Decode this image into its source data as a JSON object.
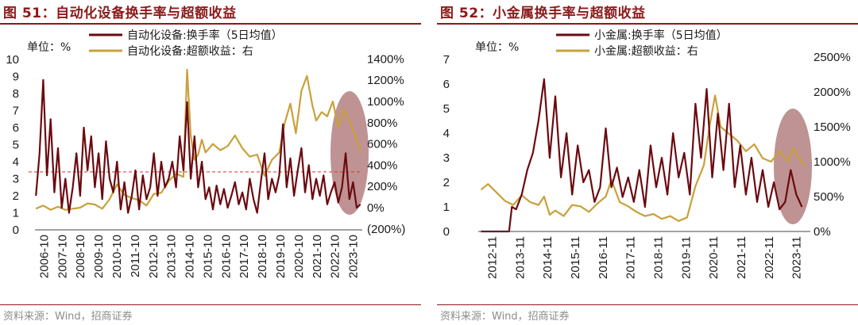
{
  "colors": {
    "turnover": "#6B0A10",
    "excess": "#C9A13B",
    "accent": "#8B1A1A",
    "negative": "#E03030",
    "ellipse": "#8B3A3A"
  },
  "panels": [
    {
      "title": "图 51：自动化设备换手率与超额收益",
      "source": "资料来源：Wind，招商证券",
      "unit_label": "单位：%",
      "chart_data": {
        "type": "line",
        "legend": [
          "自动化设备:换手率（5日均值）",
          "自动化设备:超额收益：右"
        ],
        "legend_position": "top",
        "y_left_ticks": [
          "10",
          "9",
          "8",
          "7",
          "6",
          "5",
          "4",
          "3",
          "2",
          "1",
          "0"
        ],
        "y_right_ticks": [
          "1400%",
          "1200%",
          "1000%",
          "800%",
          "600%",
          "400%",
          "200%",
          "0%",
          "(200%)"
        ],
        "ylim_left": [
          0,
          10
        ],
        "ylim_right": [
          -200,
          1400
        ],
        "x_ticks": [
          "2006-10",
          "2007-10",
          "2008-10",
          "2009-10",
          "2010-10",
          "2011-10",
          "2012-10",
          "2013-10",
          "2014-10",
          "2015-10",
          "2016-10",
          "2017-10",
          "2018-10",
          "2019-10",
          "2020-10",
          "2021-10",
          "2022-10",
          "2023-10"
        ],
        "x_start": 2006.75,
        "x_end": 2024.5,
        "reference_line": 3.4,
        "series": [
          {
            "name": "自动化设备:换手率（5日均值）",
            "axis": "left",
            "x": [
              2006.8,
              2007.0,
              2007.2,
              2007.4,
              2007.6,
              2007.8,
              2008.0,
              2008.2,
              2008.4,
              2008.6,
              2008.8,
              2009.0,
              2009.2,
              2009.4,
              2009.6,
              2009.8,
              2010.0,
              2010.2,
              2010.4,
              2010.6,
              2010.8,
              2011.0,
              2011.2,
              2011.4,
              2011.6,
              2011.8,
              2012.0,
              2012.2,
              2012.4,
              2012.6,
              2012.8,
              2013.0,
              2013.2,
              2013.4,
              2013.6,
              2013.8,
              2014.0,
              2014.2,
              2014.4,
              2014.6,
              2014.8,
              2015.0,
              2015.2,
              2015.4,
              2015.6,
              2015.8,
              2016.0,
              2016.2,
              2016.4,
              2016.6,
              2016.8,
              2017.0,
              2017.2,
              2017.4,
              2017.6,
              2017.8,
              2018.0,
              2018.2,
              2018.4,
              2018.6,
              2018.8,
              2019.0,
              2019.2,
              2019.4,
              2019.6,
              2019.8,
              2020.0,
              2020.2,
              2020.4,
              2020.6,
              2020.8,
              2021.0,
              2021.2,
              2021.4,
              2021.6,
              2021.8,
              2022.0,
              2022.2,
              2022.4,
              2022.6,
              2022.8,
              2023.0,
              2023.2,
              2023.4,
              2023.6,
              2023.8,
              2024.0,
              2024.2,
              2024.4
            ],
            "values": [
              2.0,
              4.5,
              8.8,
              3.2,
              6.5,
              2.2,
              4.8,
              1.3,
              3.0,
              1.0,
              2.5,
              4.5,
              2.0,
              6.0,
              3.5,
              5.5,
              2.5,
              4.5,
              1.8,
              5.2,
              3.0,
              2.2,
              4.0,
              1.2,
              2.8,
              1.0,
              2.0,
              3.5,
              1.2,
              3.2,
              1.8,
              2.5,
              4.5,
              2.0,
              4.0,
              2.5,
              3.0,
              4.0,
              2.5,
              5.5,
              3.5,
              7.5,
              3.0,
              5.5,
              2.5,
              4.0,
              1.8,
              2.5,
              1.2,
              2.6,
              1.5,
              2.4,
              1.3,
              2.0,
              2.8,
              1.5,
              2.2,
              1.2,
              3.0,
              1.8,
              1.0,
              2.8,
              4.5,
              1.8,
              3.0,
              2.2,
              3.2,
              6.2,
              2.5,
              4.2,
              2.0,
              3.5,
              4.8,
              2.2,
              3.8,
              1.8,
              3.0,
              2.0,
              3.2,
              1.5,
              2.2,
              2.8,
              1.6,
              2.5,
              4.5,
              1.8,
              2.8,
              1.3,
              1.5
            ]
          },
          {
            "name": "自动化设备:超额收益：右",
            "axis": "right",
            "x": [
              2006.8,
              2007.2,
              2007.6,
              2008.0,
              2008.4,
              2008.8,
              2009.2,
              2009.6,
              2010.0,
              2010.4,
              2010.8,
              2011.2,
              2011.6,
              2012.0,
              2012.4,
              2012.8,
              2013.2,
              2013.6,
              2014.0,
              2014.4,
              2014.8,
              2015.0,
              2015.2,
              2015.4,
              2015.6,
              2015.8,
              2016.0,
              2016.4,
              2016.8,
              2017.2,
              2017.6,
              2018.0,
              2018.4,
              2018.8,
              2019.2,
              2019.6,
              2020.0,
              2020.3,
              2020.6,
              2020.9,
              2021.2,
              2021.5,
              2021.8,
              2022.0,
              2022.3,
              2022.6,
              2022.9,
              2023.2,
              2023.5,
              2023.8,
              2024.1,
              2024.4
            ],
            "values": [
              -10,
              20,
              -20,
              10,
              -20,
              -10,
              0,
              40,
              30,
              -10,
              80,
              220,
              120,
              90,
              70,
              20,
              130,
              140,
              250,
              320,
              290,
              1300,
              680,
              450,
              500,
              640,
              520,
              600,
              540,
              580,
              680,
              560,
              480,
              500,
              300,
              450,
              520,
              800,
              980,
              700,
              1100,
              1240,
              960,
              820,
              900,
              860,
              1000,
              760,
              920,
              820,
              680,
              540
            ]
          }
        ]
      }
    },
    {
      "title": "图 52：小金属换手率与超额收益",
      "source": "资料来源：Wind，招商证券",
      "unit_label": "单位：%",
      "chart_data": {
        "type": "line",
        "legend": [
          "小金属:换手率（5日均值）",
          "小金属:超额收益：右"
        ],
        "legend_position": "top",
        "y_left_ticks": [
          "7",
          "6",
          "5",
          "4",
          "3",
          "2",
          "1",
          "0"
        ],
        "y_right_ticks": [
          "2500%",
          "2000%",
          "1500%",
          "1000%",
          "500%",
          "0%"
        ],
        "ylim_left": [
          0,
          7
        ],
        "ylim_right": [
          0,
          2500
        ],
        "x_ticks": [
          "2012-11",
          "2013-11",
          "2014-11",
          "2015-11",
          "2016-11",
          "2017-11",
          "2018-11",
          "2019-11",
          "2020-11",
          "2021-11",
          "2022-11",
          "2023-11"
        ],
        "x_start": 2012.75,
        "x_end": 2024.6,
        "series": [
          {
            "name": "小金属:换手率（5日均值）",
            "axis": "left",
            "x": [
              2012.85,
              2013.2,
              2013.6,
              2013.85,
              2013.95,
              2014.1,
              2014.3,
              2014.5,
              2014.7,
              2014.9,
              2015.1,
              2015.3,
              2015.5,
              2015.7,
              2015.9,
              2016.1,
              2016.3,
              2016.5,
              2016.7,
              2016.9,
              2017.1,
              2017.3,
              2017.5,
              2017.7,
              2017.9,
              2018.1,
              2018.3,
              2018.5,
              2018.7,
              2018.9,
              2019.1,
              2019.3,
              2019.5,
              2019.7,
              2019.9,
              2020.1,
              2020.3,
              2020.5,
              2020.7,
              2020.9,
              2021.1,
              2021.3,
              2021.5,
              2021.7,
              2021.9,
              2022.1,
              2022.3,
              2022.5,
              2022.7,
              2022.9,
              2023.1,
              2023.3,
              2023.5,
              2023.7,
              2023.9,
              2024.1,
              2024.3
            ],
            "values": [
              0,
              0,
              0,
              0,
              1.0,
              0.9,
              1.5,
              2.5,
              3.2,
              4.5,
              6.2,
              3.0,
              5.5,
              2.2,
              4.0,
              1.5,
              3.5,
              2.0,
              2.5,
              1.2,
              1.8,
              4.2,
              1.8,
              2.6,
              1.4,
              2.2,
              1.2,
              2.5,
              1.0,
              3.5,
              1.8,
              3.0,
              1.5,
              4.0,
              2.2,
              3.2,
              1.5,
              5.2,
              3.0,
              5.8,
              2.2,
              4.8,
              2.5,
              5.2,
              1.8,
              3.5,
              1.5,
              3.0,
              1.2,
              2.5,
              1.0,
              2.0,
              0.9,
              1.2,
              2.5,
              1.5,
              1.0
            ]
          },
          {
            "name": "小金属:超额收益：右",
            "axis": "right",
            "x": [
              2012.85,
              2013.1,
              2013.4,
              2013.7,
              2014.0,
              2014.3,
              2014.6,
              2014.9,
              2015.1,
              2015.3,
              2015.5,
              2015.8,
              2016.1,
              2016.4,
              2016.7,
              2017.0,
              2017.3,
              2017.5,
              2017.8,
              2018.1,
              2018.4,
              2018.7,
              2019.0,
              2019.3,
              2019.6,
              2019.9,
              2020.2,
              2020.5,
              2020.8,
              2021.0,
              2021.2,
              2021.4,
              2021.7,
              2022.0,
              2022.3,
              2022.6,
              2022.9,
              2023.2,
              2023.5,
              2023.8,
              2024.0,
              2024.2,
              2024.4
            ],
            "values": [
              600,
              680,
              560,
              440,
              380,
              520,
              420,
              380,
              500,
              240,
              300,
              220,
              380,
              360,
              280,
              400,
              500,
              740,
              420,
              360,
              280,
              220,
              250,
              180,
              220,
              150,
              200,
              650,
              950,
              1500,
              1950,
              1500,
              1400,
              1300,
              1150,
              1250,
              1050,
              1000,
              1150,
              1000,
              1200,
              1050,
              950
            ]
          }
        ]
      }
    }
  ]
}
